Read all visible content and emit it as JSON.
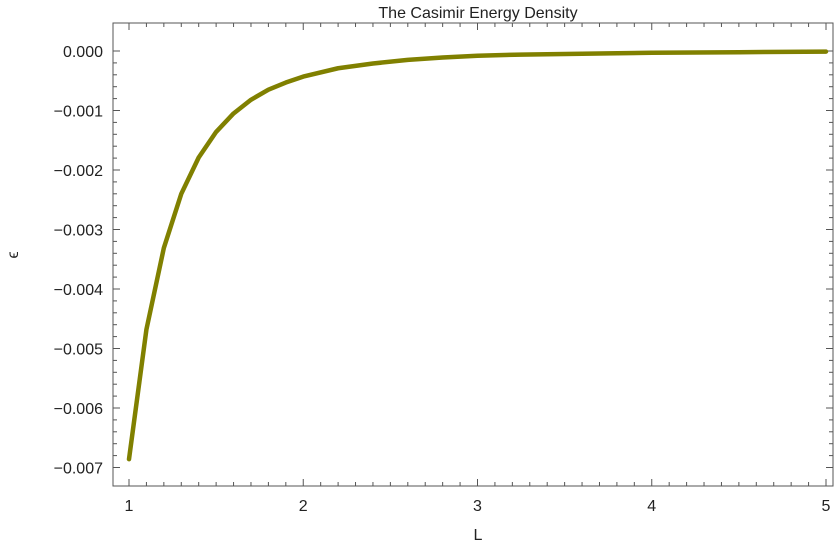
{
  "chart_data": {
    "type": "line",
    "title": "The Casimir Energy Density",
    "xlabel": "L",
    "ylabel": "ϵ",
    "xlim": [
      1,
      5
    ],
    "ylim": [
      -0.0072,
      0.0001
    ],
    "grid": false,
    "x_ticks": [
      "1",
      "2",
      "3",
      "4",
      "5"
    ],
    "y_ticks": [
      "0.000",
      "−0.001",
      "−0.002",
      "−0.003",
      "−0.004",
      "−0.005",
      "−0.006",
      "−0.007"
    ],
    "series": [
      {
        "color": "#808000",
        "x": [
          1.0,
          1.1,
          1.2,
          1.3,
          1.4,
          1.5,
          1.6,
          1.7,
          1.8,
          1.9,
          2.0,
          2.2,
          2.4,
          2.6,
          2.8,
          3.0,
          3.25,
          3.5,
          3.75,
          4.0,
          4.5,
          5.0
        ],
        "y": [
          -0.00686,
          -0.00468,
          -0.00331,
          -0.0024,
          -0.00179,
          -0.00136,
          -0.00105,
          -0.00082,
          -0.00065,
          -0.00053,
          -0.00043,
          -0.00029,
          -0.00021,
          -0.00015,
          -0.00011,
          -8e-05,
          -6e-05,
          -5e-05,
          -4e-05,
          -3e-05,
          -2e-05,
          -1e-05
        ]
      }
    ]
  }
}
